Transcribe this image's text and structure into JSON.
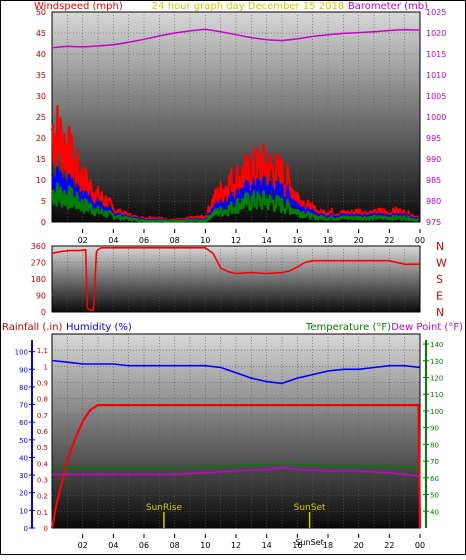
{
  "colors": {
    "red": "#ff0000",
    "blue": "#0000ff",
    "green": "#008000",
    "magenta": "#cc00cc",
    "yellow": "#cccc00",
    "darkred": "#cc0000",
    "frame": "#000000"
  },
  "chart_data": [
    {
      "type": "line",
      "title": "24 hour graph day   December 15 2018",
      "ylabel_left": "Windspeed (mph)",
      "ylabel_right": "Barometer (mb)",
      "x_ticks": [
        "02",
        "04",
        "06",
        "08",
        "10",
        "12",
        "14",
        "16",
        "18",
        "20",
        "22",
        "00"
      ],
      "y_left_ticks": [
        "0",
        "5",
        "10",
        "15",
        "20",
        "25",
        "30",
        "35",
        "40",
        "45",
        "50"
      ],
      "y_right_ticks": [
        "975",
        "980",
        "985",
        "990",
        "995",
        "1000",
        "1005",
        "1010",
        "1015",
        "1020",
        "1025"
      ],
      "ylim_left": [
        0,
        50
      ],
      "ylim_right": [
        975,
        1025
      ],
      "grid": true,
      "series": [
        {
          "color": "#cc00cc",
          "axis": "right",
          "x": [
            0,
            1,
            2,
            3,
            4,
            5,
            6,
            7,
            8,
            9,
            10,
            11,
            12,
            13,
            14,
            15,
            16,
            17,
            18,
            19,
            20,
            21,
            22,
            23,
            24
          ],
          "values": [
            1016.5,
            1016.8,
            1016.7,
            1016.9,
            1017.2,
            1017.8,
            1018.5,
            1019.3,
            1020,
            1020.5,
            1020.9,
            1020.3,
            1019.6,
            1018.9,
            1018.4,
            1018.2,
            1018.6,
            1019.2,
            1019.6,
            1019.9,
            1020.1,
            1020.3,
            1020.6,
            1020.8,
            1020.7
          ]
        },
        {
          "color": "#ff0000",
          "axis": "left",
          "x": [
            0,
            0.5,
            1,
            1.5,
            2,
            2.5,
            3,
            3.5,
            4,
            4.5,
            5,
            5.5,
            6,
            6.5,
            7,
            7.5,
            8,
            8.5,
            9,
            9.5,
            10,
            10.5,
            11,
            11.5,
            12,
            12.5,
            13,
            13.5,
            14,
            14.5,
            15,
            15.5,
            16,
            16.5,
            17,
            17.5,
            18,
            18.5,
            19,
            19.5,
            20,
            20.5,
            21,
            21.5,
            22,
            22.5,
            23,
            23.5,
            24
          ],
          "values": [
            22,
            20,
            17,
            13,
            10,
            8,
            6,
            5,
            3,
            2,
            1.5,
            1,
            0.8,
            1,
            0.8,
            0.5,
            0.5,
            0.5,
            0.8,
            1,
            1,
            5,
            7,
            9,
            10,
            11,
            12,
            13,
            13,
            12,
            11,
            9,
            6,
            4,
            3,
            2,
            2.5,
            2,
            2,
            2,
            2.5,
            2,
            2,
            2.5,
            2,
            2.5,
            2,
            1.5,
            1
          ]
        },
        {
          "color": "#0000ff",
          "axis": "left",
          "x": [
            0,
            0.5,
            1,
            1.5,
            2,
            2.5,
            3,
            3.5,
            4,
            4.5,
            5,
            5.5,
            6,
            6.5,
            7,
            7.5,
            8,
            8.5,
            9,
            9.5,
            10,
            10.5,
            11,
            11.5,
            12,
            12.5,
            13,
            13.5,
            14,
            14.5,
            15,
            15.5,
            16,
            16.5,
            17,
            17.5,
            18,
            18.5,
            19,
            19.5,
            20,
            20.5,
            21,
            21.5,
            22,
            22.5,
            23,
            23.5,
            24
          ],
          "values": [
            11,
            10,
            9,
            7,
            6,
            5,
            4,
            3,
            2,
            1.5,
            1,
            0.8,
            0.5,
            0.5,
            0.5,
            0.3,
            0.3,
            0.3,
            0.5,
            0.5,
            0.5,
            3,
            4,
            5,
            6,
            7,
            7.5,
            8,
            8,
            7.5,
            7,
            6,
            4,
            3,
            2,
            1.5,
            1.5,
            1.5,
            1.5,
            1.5,
            1.5,
            1.5,
            1.5,
            1.5,
            1.5,
            1.5,
            1.5,
            1,
            0.8
          ]
        },
        {
          "color": "#008000",
          "axis": "left",
          "x": [
            0,
            0.5,
            1,
            1.5,
            2,
            2.5,
            3,
            3.5,
            4,
            4.5,
            5,
            5.5,
            6,
            6.5,
            7,
            7.5,
            8,
            8.5,
            9,
            9.5,
            10,
            10.5,
            11,
            11.5,
            12,
            12.5,
            13,
            13.5,
            14,
            14.5,
            15,
            15.5,
            16,
            16.5,
            17,
            17.5,
            18,
            18.5,
            19,
            19.5,
            20,
            20.5,
            21,
            21.5,
            22,
            22.5,
            23,
            23.5,
            24
          ],
          "values": [
            7,
            6.5,
            6,
            5,
            4,
            3.5,
            2.5,
            2,
            1.5,
            1,
            0.8,
            0.5,
            0.3,
            0.3,
            0.3,
            0.2,
            0.2,
            0.2,
            0.3,
            0.3,
            0.3,
            2,
            2.5,
            3,
            4,
            4.5,
            5,
            5,
            5,
            4.5,
            4,
            3.5,
            2.5,
            2,
            1.2,
            1,
            1,
            1,
            1,
            1,
            1,
            1,
            1,
            1,
            1,
            1,
            1,
            0.7,
            0.5
          ]
        }
      ]
    },
    {
      "type": "line",
      "x_ticks": [
        "02",
        "04",
        "06",
        "08",
        "10",
        "12",
        "14",
        "16",
        "18",
        "20",
        "22",
        "00"
      ],
      "y_left_ticks": [
        "0",
        "90",
        "180",
        "270",
        "360"
      ],
      "ylim_left": [
        0,
        360
      ],
      "compass_labels": [
        "N",
        "W",
        "S",
        "E",
        "N"
      ],
      "grid": true,
      "series": [
        {
          "color": "#ff0000",
          "x": [
            0,
            0.6,
            1.2,
            1.8,
            2.2,
            2.3,
            2.5,
            2.7,
            2.9,
            3.0,
            3.2,
            4,
            6,
            8,
            10,
            10.5,
            11,
            11.5,
            12,
            13,
            14,
            15,
            15.5,
            16,
            16.5,
            17,
            18,
            20,
            22,
            23,
            24
          ],
          "values": [
            320,
            330,
            335,
            335,
            340,
            20,
            10,
            10,
            330,
            340,
            350,
            350,
            350,
            350,
            350,
            320,
            240,
            220,
            210,
            215,
            210,
            215,
            225,
            245,
            270,
            280,
            280,
            280,
            280,
            260,
            260
          ]
        }
      ]
    },
    {
      "type": "line",
      "ylabel_left": "Rainfall (.in)",
      "ylabel_left2": "Humidity (%)",
      "ylabel_right": "Temperature (°F)",
      "ylabel_right2": "Dew Point (°F)",
      "x_ticks": [
        "02",
        "04",
        "06",
        "08",
        "10",
        "12",
        "14",
        "16",
        "18",
        "20",
        "22",
        "00"
      ],
      "y_left_ticks": [
        "0",
        "0.1",
        "0.2",
        "0.3",
        "0.4",
        "0.5",
        "0.6",
        "0.7",
        "0.8",
        "0.9",
        "1",
        "1.1"
      ],
      "y_left2_ticks": [
        "0",
        "10",
        "20",
        "30",
        "40",
        "50",
        "60",
        "70",
        "80",
        "90",
        "100"
      ],
      "y_right_ticks": [
        "40",
        "50",
        "60",
        "70",
        "80",
        "90",
        "100",
        "110",
        "120",
        "130",
        "140"
      ],
      "ylim_left": [
        0,
        1.2
      ],
      "ylim_right": [
        30,
        146
      ],
      "grid": true,
      "annotations": [
        "SunRise",
        "SunSet",
        "SunSet"
      ],
      "sunrise_hour": 7.3,
      "sunset_hour": 16.8,
      "series": [
        {
          "color": "#ff0000",
          "axis": "left",
          "x": [
            0,
            0.3,
            0.7,
            1,
            1.5,
            2,
            2.5,
            3,
            4,
            8,
            12,
            16,
            20,
            23.9,
            24
          ],
          "values": [
            0,
            0.15,
            0.3,
            0.42,
            0.55,
            0.66,
            0.73,
            0.76,
            0.76,
            0.76,
            0.76,
            0.76,
            0.76,
            0.76,
            0
          ]
        },
        {
          "color": "#0000ff",
          "axis": "left2",
          "x": [
            0,
            1,
            2,
            3,
            4,
            5,
            6,
            7,
            8,
            9,
            10,
            11,
            12,
            13,
            14,
            15,
            16,
            17,
            18,
            19,
            20,
            21,
            22,
            23,
            24
          ],
          "values": [
            95,
            94,
            93,
            93,
            93,
            92,
            92,
            92,
            92,
            92,
            92,
            91,
            88,
            85,
            83,
            82,
            85,
            87,
            89,
            90,
            90,
            91,
            92,
            92,
            91
          ]
        },
        {
          "color": "#008000",
          "axis": "right",
          "x": [
            0,
            2,
            4,
            6,
            8,
            10,
            12,
            14,
            15,
            16,
            18,
            20,
            22,
            24
          ],
          "values": [
            66,
            66,
            66,
            66,
            66,
            67,
            67,
            68,
            69,
            68,
            67,
            67,
            67,
            66
          ]
        },
        {
          "color": "#cc00cc",
          "axis": "right",
          "x": [
            0,
            2,
            4,
            6,
            8,
            10,
            12,
            14,
            15,
            16,
            18,
            20,
            22,
            24
          ],
          "values": [
            62,
            62,
            62,
            62,
            62,
            63,
            64,
            65,
            66,
            65,
            64,
            64,
            63,
            61
          ]
        }
      ]
    }
  ]
}
